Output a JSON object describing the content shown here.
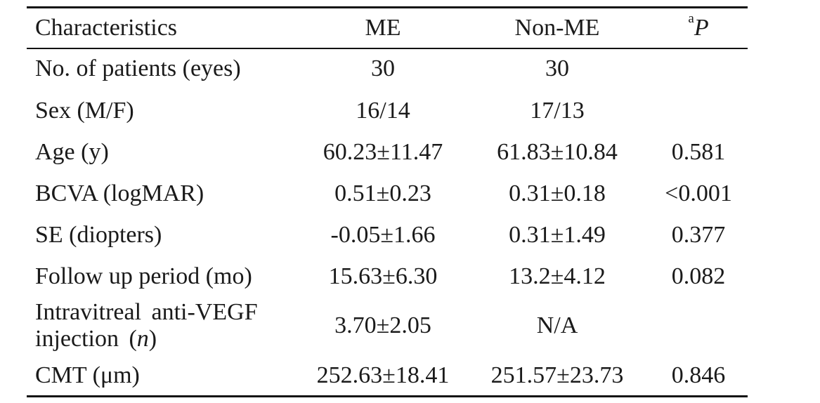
{
  "table": {
    "header": {
      "characteristics": "Characteristics",
      "me": "ME",
      "non_me": "Non-ME",
      "p_superscript": "a",
      "p_letter": "P"
    },
    "rows": [
      {
        "label": "No. of patients (eyes)",
        "me": "30",
        "non_me": "30",
        "p": ""
      },
      {
        "label": "Sex (M/F)",
        "me": "16/14",
        "non_me": "17/13",
        "p": ""
      },
      {
        "label": "Age (y)",
        "me": "60.23±11.47",
        "non_me": "61.83±10.84",
        "p": "0.581"
      },
      {
        "label": "BCVA (logMAR)",
        "me": "0.51±0.23",
        "non_me": "0.31±0.18",
        "p": "<0.001"
      },
      {
        "label": "SE (diopters)",
        "me": "-0.05±1.66",
        "non_me": "0.31±1.49",
        "p": "0.377"
      },
      {
        "label": "Follow up period (mo)",
        "me": "15.63±6.30",
        "non_me": "13.2±4.12",
        "p": "0.082"
      },
      {
        "label_line1": "Intravitreal anti-VEGF",
        "label_line2_prefix": "injection (",
        "label_line2_italic": "n",
        "label_line2_suffix": ")",
        "me": "3.70±2.05",
        "non_me": "N/A",
        "p": ""
      },
      {
        "label": "CMT (μm)",
        "me": "252.63±18.41",
        "non_me": "251.57±23.73",
        "p": "0.846"
      }
    ]
  }
}
